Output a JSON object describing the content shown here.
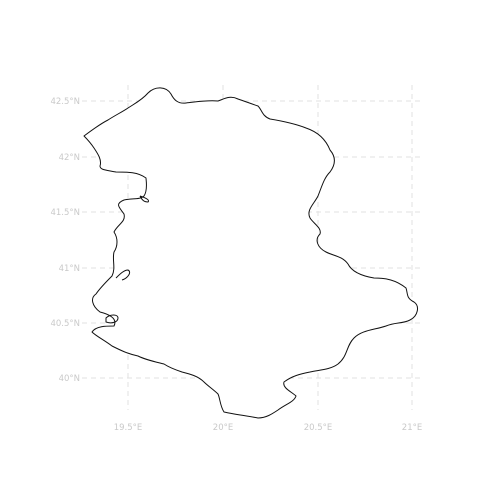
{
  "map": {
    "lat_ticks": [
      {
        "label": "42.5°N",
        "value": 42.5
      },
      {
        "label": "42°N",
        "value": 42.0
      },
      {
        "label": "41.5°N",
        "value": 41.5
      },
      {
        "label": "41°N",
        "value": 41.0
      },
      {
        "label": "40.5°N",
        "value": 40.5
      },
      {
        "label": "40°N",
        "value": 40.0
      }
    ],
    "lon_ticks": [
      {
        "label": "19.5°E",
        "value": 19.5
      },
      {
        "label": "20°E",
        "value": 20.0
      },
      {
        "label": "20.5°E",
        "value": 20.5
      },
      {
        "label": "21°E",
        "value": 21.0
      }
    ],
    "grid": true,
    "colors": {
      "grid": "#e2e2e2",
      "tick_label": "#c9c9c9",
      "outline": "#111111",
      "fill": "#ffffff"
    }
  }
}
